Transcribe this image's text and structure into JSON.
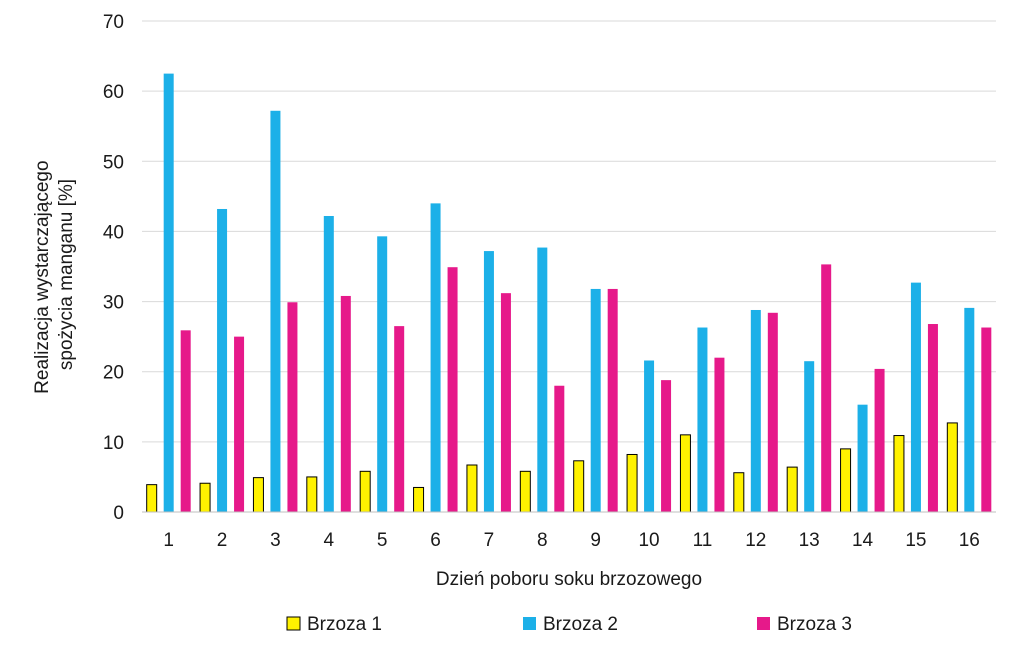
{
  "chart_data": {
    "type": "bar",
    "title": "",
    "xlabel": "Dzień poboru soku brzozowego",
    "ylabel_lines": [
      "Realizacja wystarczającego",
      "spożycia manganu [%]"
    ],
    "ylim": [
      0,
      70
    ],
    "yticks": [
      0,
      10,
      20,
      30,
      40,
      50,
      60,
      70
    ],
    "grid": true,
    "legend_position": "bottom",
    "categories": [
      "1",
      "2",
      "3",
      "4",
      "5",
      "6",
      "7",
      "8",
      "9",
      "10",
      "11",
      "12",
      "13",
      "14",
      "15",
      "16"
    ],
    "series": [
      {
        "name": "Brzoza 1",
        "color": "#fff200",
        "outlined": true,
        "values": [
          3.9,
          4.1,
          4.9,
          5.0,
          5.8,
          3.5,
          6.7,
          5.8,
          7.3,
          8.2,
          11.0,
          5.6,
          6.4,
          9.0,
          10.9,
          12.7
        ]
      },
      {
        "name": "Brzoza 2",
        "color": "#1cb0e8",
        "outlined": false,
        "values": [
          62.5,
          43.2,
          57.2,
          42.2,
          39.3,
          44.0,
          37.2,
          37.7,
          31.8,
          21.6,
          26.3,
          28.8,
          21.5,
          15.3,
          32.7,
          29.1
        ]
      },
      {
        "name": "Brzoza 3",
        "color": "#e6198a",
        "outlined": false,
        "values": [
          25.9,
          25.0,
          29.9,
          30.8,
          26.5,
          34.9,
          31.2,
          18.0,
          31.8,
          18.8,
          22.0,
          28.4,
          35.3,
          20.4,
          26.8,
          26.3
        ]
      }
    ]
  }
}
